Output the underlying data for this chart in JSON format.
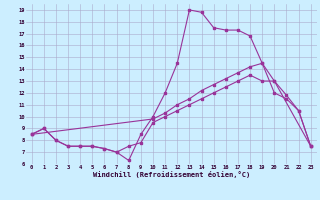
{
  "xlabel": "Windchill (Refroidissement éolien,°C)",
  "xlim": [
    -0.5,
    23.5
  ],
  "ylim": [
    6,
    19.5
  ],
  "xticks": [
    0,
    1,
    2,
    3,
    4,
    5,
    6,
    7,
    8,
    9,
    10,
    11,
    12,
    13,
    14,
    15,
    16,
    17,
    18,
    19,
    20,
    21,
    22,
    23
  ],
  "yticks": [
    6,
    7,
    8,
    9,
    10,
    11,
    12,
    13,
    14,
    15,
    16,
    17,
    18,
    19
  ],
  "bg_color": "#cceeff",
  "grid_color": "#aaaacc",
  "line_color": "#993399",
  "curve1_x": [
    0,
    1,
    2,
    3,
    4,
    5,
    6,
    7,
    8,
    9,
    10,
    11,
    12,
    13,
    14,
    15,
    16,
    17,
    18,
    19,
    20,
    21,
    22,
    23
  ],
  "curve1_y": [
    8.5,
    9.0,
    8.0,
    7.5,
    7.5,
    7.5,
    7.3,
    7.0,
    6.3,
    8.5,
    10.0,
    12.0,
    14.5,
    19.0,
    18.8,
    17.5,
    17.3,
    17.3,
    16.8,
    14.5,
    12.0,
    11.5,
    10.5,
    7.5
  ],
  "curve2_x": [
    0,
    10,
    11,
    12,
    13,
    14,
    15,
    16,
    17,
    18,
    19,
    20,
    21,
    22,
    23
  ],
  "curve2_y": [
    8.5,
    9.8,
    10.3,
    11.0,
    11.5,
    12.2,
    12.7,
    13.2,
    13.7,
    14.2,
    14.5,
    13.0,
    11.8,
    10.5,
    7.5
  ],
  "curve3_x": [
    0,
    1,
    2,
    3,
    4,
    5,
    6,
    7,
    8,
    9,
    10,
    11,
    12,
    13,
    14,
    15,
    16,
    17,
    18,
    19,
    20,
    23
  ],
  "curve3_y": [
    8.5,
    9.0,
    8.0,
    7.5,
    7.5,
    7.5,
    7.3,
    7.0,
    7.5,
    7.8,
    9.5,
    10.0,
    10.5,
    11.0,
    11.5,
    12.0,
    12.5,
    13.0,
    13.5,
    13.0,
    13.0,
    7.5
  ]
}
